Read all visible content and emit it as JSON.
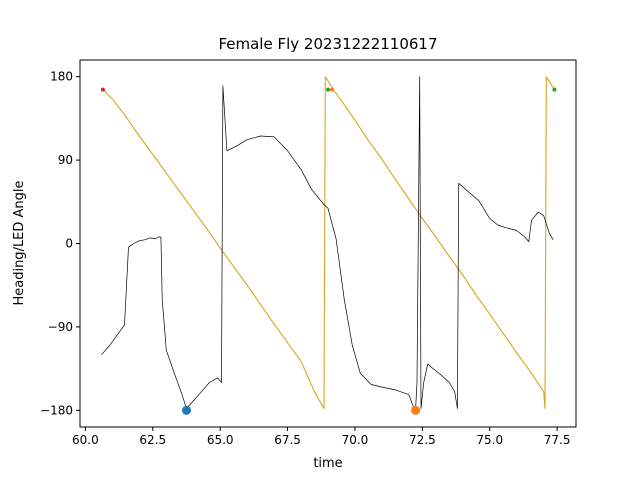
{
  "chart_data": {
    "type": "line",
    "title": "Female Fly 20231222110617",
    "xlabel": "time",
    "ylabel": "Heading/LED Angle",
    "xlim": [
      59.8,
      78.2
    ],
    "ylim": [
      -198,
      198
    ],
    "xticks": [
      60.0,
      62.5,
      65.0,
      67.5,
      70.0,
      72.5,
      75.0,
      77.5
    ],
    "xtick_labels": [
      "60.0",
      "62.5",
      "65.0",
      "67.5",
      "70.0",
      "72.5",
      "75.0",
      "77.5"
    ],
    "yticks": [
      180,
      90,
      0,
      -90,
      -180
    ],
    "ytick_labels": [
      "180",
      "90",
      "0",
      "−90",
      "−180"
    ],
    "grid": false,
    "colors": {
      "heading": "#000000",
      "led": "#DAA520",
      "marker_blue": "#1f77b4",
      "marker_orange": "#ff7f0e",
      "marker_red": "#d62728",
      "marker_green": "#2ca02c"
    },
    "series": [
      {
        "key": "led",
        "points": [
          [
            60.65,
            166
          ],
          [
            61.0,
            156
          ],
          [
            61.5,
            137
          ],
          [
            62.0,
            116
          ],
          [
            62.5,
            96
          ],
          [
            63.0,
            76
          ],
          [
            63.5,
            56
          ],
          [
            64.0,
            36
          ],
          [
            64.5,
            16
          ],
          [
            65.0,
            -5
          ],
          [
            65.5,
            -25
          ],
          [
            66.0,
            -45
          ],
          [
            66.5,
            -66
          ],
          [
            67.0,
            -87
          ],
          [
            67.5,
            -107
          ],
          [
            68.0,
            -127
          ],
          [
            68.5,
            -160
          ],
          [
            68.85,
            -178
          ],
          [
            68.9,
            180
          ],
          [
            69.2,
            166
          ],
          [
            69.5,
            154
          ],
          [
            70.0,
            133
          ],
          [
            70.5,
            111
          ],
          [
            71.0,
            91
          ],
          [
            71.5,
            69
          ],
          [
            72.0,
            48
          ],
          [
            72.5,
            27
          ],
          [
            73.0,
            7
          ],
          [
            73.5,
            -14
          ],
          [
            74.0,
            -34
          ],
          [
            74.5,
            -56
          ],
          [
            75.0,
            -76
          ],
          [
            75.5,
            -97
          ],
          [
            76.0,
            -118
          ],
          [
            76.5,
            -138
          ],
          [
            77.0,
            -160
          ],
          [
            77.05,
            -178
          ],
          [
            77.1,
            180
          ],
          [
            77.4,
            166
          ]
        ]
      },
      {
        "key": "heading",
        "points": [
          [
            60.6,
            -120
          ],
          [
            60.9,
            -110
          ],
          [
            61.2,
            -98
          ],
          [
            61.45,
            -88
          ],
          [
            61.6,
            -4
          ],
          [
            61.8,
            0
          ],
          [
            62.0,
            3
          ],
          [
            62.2,
            4
          ],
          [
            62.4,
            6
          ],
          [
            62.6,
            5
          ],
          [
            62.7,
            7
          ],
          [
            62.8,
            7
          ],
          [
            62.85,
            -60
          ],
          [
            63.0,
            -115
          ],
          [
            63.3,
            -140
          ],
          [
            63.55,
            -160
          ],
          [
            63.75,
            -178
          ],
          [
            64.0,
            -170
          ],
          [
            64.3,
            -160
          ],
          [
            64.6,
            -150
          ],
          [
            64.9,
            -145
          ],
          [
            65.05,
            -150
          ],
          [
            65.1,
            170
          ],
          [
            65.25,
            100
          ],
          [
            65.6,
            105
          ],
          [
            66.0,
            112
          ],
          [
            66.5,
            116
          ],
          [
            67.0,
            115
          ],
          [
            67.5,
            100
          ],
          [
            68.0,
            80
          ],
          [
            68.4,
            58
          ],
          [
            68.85,
            42
          ],
          [
            69.0,
            38
          ],
          [
            69.3,
            5
          ],
          [
            69.6,
            -60
          ],
          [
            69.9,
            -110
          ],
          [
            70.2,
            -140
          ],
          [
            70.6,
            -152
          ],
          [
            71.0,
            -155
          ],
          [
            71.5,
            -158
          ],
          [
            72.0,
            -163
          ],
          [
            72.15,
            -175
          ],
          [
            72.25,
            -178
          ],
          [
            72.3,
            -150
          ],
          [
            72.4,
            180
          ],
          [
            72.45,
            -178
          ],
          [
            72.55,
            -150
          ],
          [
            72.7,
            -130
          ],
          [
            72.9,
            -135
          ],
          [
            73.2,
            -142
          ],
          [
            73.5,
            -150
          ],
          [
            73.7,
            -160
          ],
          [
            73.8,
            -178
          ],
          [
            73.85,
            65
          ],
          [
            74.2,
            56
          ],
          [
            74.6,
            46
          ],
          [
            75.0,
            27
          ],
          [
            75.3,
            20
          ],
          [
            75.6,
            17
          ],
          [
            76.0,
            14
          ],
          [
            76.3,
            7
          ],
          [
            76.45,
            2
          ],
          [
            76.55,
            25
          ],
          [
            76.8,
            34
          ],
          [
            77.0,
            30
          ],
          [
            77.2,
            12
          ],
          [
            77.35,
            4
          ]
        ]
      }
    ],
    "markers": [
      {
        "x": 60.65,
        "y": 166,
        "color": "marker_red",
        "size": "small"
      },
      {
        "x": 69.0,
        "y": 166,
        "color": "marker_green",
        "size": "small"
      },
      {
        "x": 69.15,
        "y": 166,
        "color": "marker_orange",
        "size": "small"
      },
      {
        "x": 77.4,
        "y": 166,
        "color": "marker_green",
        "size": "small"
      },
      {
        "x": 63.75,
        "y": -180,
        "color": "marker_blue",
        "size": "large"
      },
      {
        "x": 72.25,
        "y": -180,
        "color": "marker_orange",
        "size": "large"
      }
    ]
  }
}
